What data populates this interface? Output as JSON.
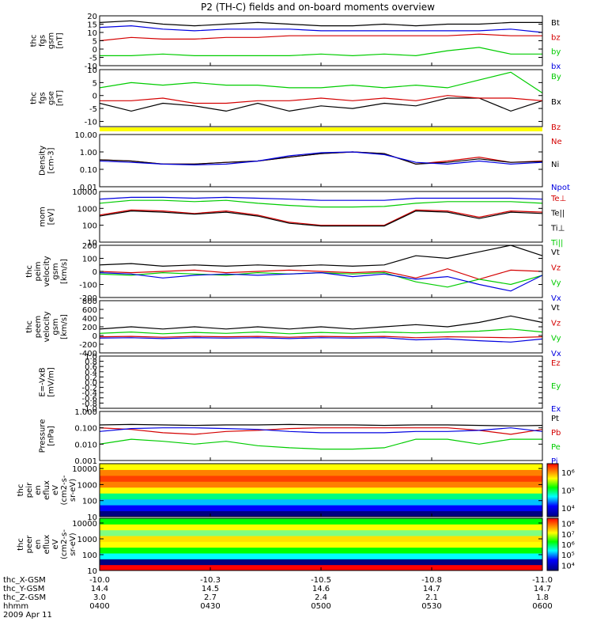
{
  "title": "P2 (TH-C) fields and on-board moments overview",
  "colors": {
    "black": "#000000",
    "red": "#d40000",
    "green": "#00cc00",
    "blue": "#0000e0",
    "yellow": "#ffff00"
  },
  "footer": {
    "rows": [
      {
        "label": "thc_X-GSM",
        "values": [
          "-10.0",
          "-10.3",
          "-10.5",
          "-10.8",
          "-11.0"
        ]
      },
      {
        "label": "thc_Y-GSM",
        "values": [
          "14.4",
          "14.5",
          "14.6",
          "14.7",
          "14.7"
        ]
      },
      {
        "label": "thc_Z-GSM",
        "values": [
          "3.0",
          "2.7",
          "2.4",
          "2.1",
          "1.8"
        ]
      },
      {
        "label": "hhmm",
        "values": [
          "0400",
          "0430",
          "0500",
          "0530",
          "0600"
        ]
      }
    ],
    "date": "2009 Apr 11"
  },
  "chart_data": [
    {
      "type": "line",
      "ylabel": [
        "thc",
        "fgs",
        "gsm",
        "[nT]"
      ],
      "ylim": [
        -10,
        20
      ],
      "ticks": [
        "-10",
        "-5",
        "0",
        "5",
        "10",
        "15",
        "20"
      ],
      "legend": [
        {
          "label": "Bt",
          "color": "black"
        },
        {
          "label": "bz",
          "color": "red"
        },
        {
          "label": "by",
          "color": "green"
        },
        {
          "label": "bx",
          "color": "blue"
        }
      ],
      "series": [
        {
          "color": "black",
          "values": [
            16,
            17,
            15,
            14,
            15,
            16,
            15,
            14,
            14,
            15,
            14,
            15,
            15,
            16,
            16
          ]
        },
        {
          "color": "red",
          "values": [
            5,
            7,
            6,
            6,
            7,
            7,
            8,
            8,
            8,
            8,
            8,
            8,
            9,
            8,
            8
          ]
        },
        {
          "color": "green",
          "values": [
            -4,
            -4,
            -3,
            -4,
            -4,
            -4,
            -4,
            -3,
            -4,
            -3,
            -4,
            -1,
            1,
            -3,
            -3
          ]
        },
        {
          "color": "blue",
          "values": [
            13,
            14,
            12,
            11,
            12,
            12,
            12,
            11,
            11,
            11,
            11,
            11,
            11,
            12,
            10
          ]
        }
      ]
    },
    {
      "type": "line",
      "ylabel": [
        "thc",
        "fgs",
        "gse",
        "[nT]"
      ],
      "ylim": [
        -12,
        10
      ],
      "ticks": [
        "-10",
        "-5",
        "0",
        "5",
        "10"
      ],
      "legend": [
        {
          "label": "By",
          "color": "green"
        },
        {
          "label": "Bx",
          "color": "black"
        },
        {
          "label": "Bz",
          "color": "red"
        }
      ],
      "series": [
        {
          "color": "green",
          "values": [
            3,
            5,
            4,
            5,
            4,
            4,
            3,
            3,
            4,
            3,
            4,
            3,
            6,
            9,
            1
          ]
        },
        {
          "color": "black",
          "values": [
            -3,
            -6,
            -3,
            -4,
            -6,
            -3,
            -6,
            -4,
            -5,
            -3,
            -4,
            -1,
            -1,
            -6,
            -2
          ]
        },
        {
          "color": "red",
          "values": [
            -2,
            -2,
            -1,
            -3,
            -3,
            -2,
            -2,
            -1,
            -2,
            -1,
            -2,
            0,
            -1,
            -1,
            -2
          ]
        }
      ]
    },
    {
      "type": "line",
      "ylabel": [
        "Density",
        "[cm-3]"
      ],
      "scale": "log",
      "ylim": [
        0.01,
        10
      ],
      "ticks": [
        "0.01",
        "0.10",
        "1.00",
        "10.00"
      ],
      "legend": [
        {
          "label": "Ne",
          "color": "red"
        },
        {
          "label": "Ni",
          "color": "black"
        },
        {
          "label": "Npot",
          "color": "blue"
        }
      ],
      "series": [
        {
          "color": "red",
          "values": [
            0.35,
            0.3,
            0.2,
            0.2,
            0.25,
            0.3,
            0.5,
            0.8,
            1.0,
            0.8,
            0.2,
            0.3,
            0.5,
            0.25,
            0.3
          ]
        },
        {
          "color": "black",
          "values": [
            0.35,
            0.3,
            0.2,
            0.2,
            0.25,
            0.3,
            0.5,
            0.8,
            1.0,
            0.8,
            0.2,
            0.25,
            0.4,
            0.25,
            0.28
          ]
        },
        {
          "color": "blue",
          "values": [
            0.3,
            0.25,
            0.2,
            0.18,
            0.2,
            0.3,
            0.6,
            0.9,
            1.0,
            0.7,
            0.25,
            0.2,
            0.3,
            0.2,
            0.25
          ]
        }
      ]
    },
    {
      "type": "line",
      "ylabel": [
        "mom",
        "[eV]"
      ],
      "scale": "log",
      "ylim": [
        10,
        10000
      ],
      "ticks": [
        "10",
        "100",
        "1000",
        "10000"
      ],
      "legend": [
        {
          "label": "Te⊥",
          "color": "red"
        },
        {
          "label": "Te||",
          "color": "black"
        },
        {
          "label": "Ti⊥",
          "color": "black"
        },
        {
          "label": "Ti||",
          "color": "green"
        }
      ],
      "series": [
        {
          "color": "blue",
          "values": [
            3500,
            4500,
            4500,
            4000,
            4500,
            4000,
            3500,
            3000,
            3000,
            3000,
            4000,
            4000,
            4000,
            4000,
            3500
          ]
        },
        {
          "color": "green",
          "values": [
            2000,
            3000,
            3000,
            2500,
            3000,
            2000,
            1500,
            1200,
            1200,
            1300,
            2000,
            2500,
            2500,
            2500,
            2000
          ]
        },
        {
          "color": "red",
          "values": [
            400,
            800,
            700,
            500,
            700,
            400,
            150,
            100,
            100,
            100,
            800,
            700,
            300,
            700,
            600
          ]
        },
        {
          "color": "black",
          "values": [
            350,
            700,
            600,
            450,
            600,
            350,
            130,
            90,
            90,
            90,
            700,
            600,
            250,
            600,
            500
          ]
        }
      ]
    },
    {
      "type": "line",
      "ylabel": [
        "thc",
        "peim",
        "velocity",
        "gsm",
        "[km/s]"
      ],
      "ylim": [
        -200,
        200
      ],
      "ticks": [
        "-200",
        "-100",
        "0",
        "100",
        "200"
      ],
      "legend": [
        {
          "label": "Vt",
          "color": "black"
        },
        {
          "label": "Vz",
          "color": "red"
        },
        {
          "label": "Vy",
          "color": "green"
        },
        {
          "label": "Vx",
          "color": "blue"
        }
      ],
      "series": [
        {
          "color": "black",
          "values": [
            50,
            60,
            40,
            50,
            40,
            50,
            40,
            50,
            40,
            50,
            120,
            100,
            150,
            200,
            120
          ]
        },
        {
          "color": "red",
          "values": [
            0,
            -10,
            0,
            10,
            -10,
            0,
            10,
            0,
            -10,
            0,
            -50,
            20,
            -60,
            10,
            0
          ]
        },
        {
          "color": "green",
          "values": [
            -20,
            -30,
            -10,
            -20,
            -30,
            -10,
            -20,
            -10,
            -20,
            -10,
            -80,
            -120,
            -60,
            -100,
            -30
          ]
        },
        {
          "color": "blue",
          "values": [
            -10,
            -20,
            -50,
            -30,
            -20,
            -30,
            -20,
            -10,
            -40,
            -20,
            -60,
            -40,
            -100,
            -150,
            -30
          ]
        }
      ]
    },
    {
      "type": "line",
      "ylabel": [
        "thc",
        "peem",
        "velocity",
        "gsm",
        "[km/s]"
      ],
      "ylim": [
        -400,
        800
      ],
      "ticks": [
        "-400",
        "-200",
        "0",
        "200",
        "400",
        "600",
        "800"
      ],
      "legend": [
        {
          "label": "Vt",
          "color": "black"
        },
        {
          "label": "Vz",
          "color": "red"
        },
        {
          "label": "Vy",
          "color": "green"
        },
        {
          "label": "Vx",
          "color": "blue"
        }
      ],
      "series": [
        {
          "color": "black",
          "values": [
            150,
            200,
            150,
            200,
            150,
            200,
            150,
            200,
            150,
            200,
            250,
            200,
            300,
            450,
            300
          ]
        },
        {
          "color": "green",
          "values": [
            50,
            80,
            40,
            70,
            50,
            80,
            40,
            70,
            50,
            80,
            60,
            80,
            100,
            150,
            80
          ]
        },
        {
          "color": "red",
          "values": [
            -30,
            -20,
            -40,
            -20,
            -30,
            -20,
            -40,
            -20,
            -30,
            -20,
            -50,
            -30,
            -40,
            -50,
            -30
          ]
        },
        {
          "color": "blue",
          "values": [
            -60,
            -50,
            -70,
            -50,
            -60,
            -50,
            -70,
            -50,
            -60,
            -50,
            -100,
            -80,
            -120,
            -150,
            -80
          ]
        }
      ]
    },
    {
      "type": "line",
      "ylabel": [
        "E=-VxB",
        "[mV/m]"
      ],
      "ylim": [
        -1,
        1
      ],
      "ticks": [
        "-1.0",
        "-0.8",
        "-0.6",
        "-0.4",
        "-0.2",
        "0.0",
        "0.2",
        "0.4",
        "0.6",
        "0.8",
        "1.0"
      ],
      "legend": [
        {
          "label": "Ez",
          "color": "red"
        },
        {
          "label": "Ey",
          "color": "green"
        },
        {
          "label": "Ex",
          "color": "blue"
        }
      ],
      "series": []
    },
    {
      "type": "line",
      "ylabel": [
        "Pressure",
        "[nPa]"
      ],
      "scale": "log",
      "ylim": [
        0.001,
        1
      ],
      "ticks": [
        "0.001",
        "0.010",
        "0.100",
        "1.000"
      ],
      "legend": [
        {
          "label": "Pt",
          "color": "black"
        },
        {
          "label": "Pb",
          "color": "red"
        },
        {
          "label": "Pe",
          "color": "green"
        },
        {
          "label": "Pi",
          "color": "blue"
        }
      ],
      "series": [
        {
          "color": "black",
          "values": [
            0.15,
            0.16,
            0.15,
            0.14,
            0.15,
            0.15,
            0.16,
            0.15,
            0.15,
            0.14,
            0.15,
            0.15,
            0.14,
            0.13,
            0.14
          ]
        },
        {
          "color": "red",
          "values": [
            0.1,
            0.08,
            0.05,
            0.04,
            0.06,
            0.07,
            0.09,
            0.1,
            0.1,
            0.1,
            0.1,
            0.1,
            0.07,
            0.04,
            0.08
          ]
        },
        {
          "color": "blue",
          "values": [
            0.06,
            0.09,
            0.1,
            0.1,
            0.09,
            0.08,
            0.06,
            0.05,
            0.05,
            0.05,
            0.06,
            0.06,
            0.07,
            0.1,
            0.06
          ]
        },
        {
          "color": "green",
          "values": [
            0.01,
            0.02,
            0.015,
            0.01,
            0.015,
            0.008,
            0.006,
            0.005,
            0.005,
            0.006,
            0.02,
            0.02,
            0.01,
            0.02,
            0.02
          ]
        }
      ]
    },
    {
      "type": "heatmap",
      "ylabel": [
        "thc",
        "peir",
        "en",
        "eflux",
        "eV",
        "(cm2-s-",
        "sr-eV)"
      ],
      "scale": "log",
      "ylim": [
        10,
        20000
      ],
      "ticks": [
        "10",
        "100",
        "1000",
        "10000"
      ],
      "colorbar": [
        "10⁴",
        "10⁵",
        "10⁶"
      ]
    },
    {
      "type": "heatmap",
      "ylabel": [
        "thc",
        "peer",
        "en",
        "eflux",
        "eV",
        "(cm2-s-",
        "sr-eV)"
      ],
      "scale": "log",
      "ylim": [
        10,
        20000
      ],
      "ticks": [
        "10",
        "100",
        "1000",
        "10000"
      ],
      "colorbar": [
        "10⁴",
        "10⁵",
        "10⁶",
        "10⁷",
        "10⁸"
      ]
    }
  ]
}
